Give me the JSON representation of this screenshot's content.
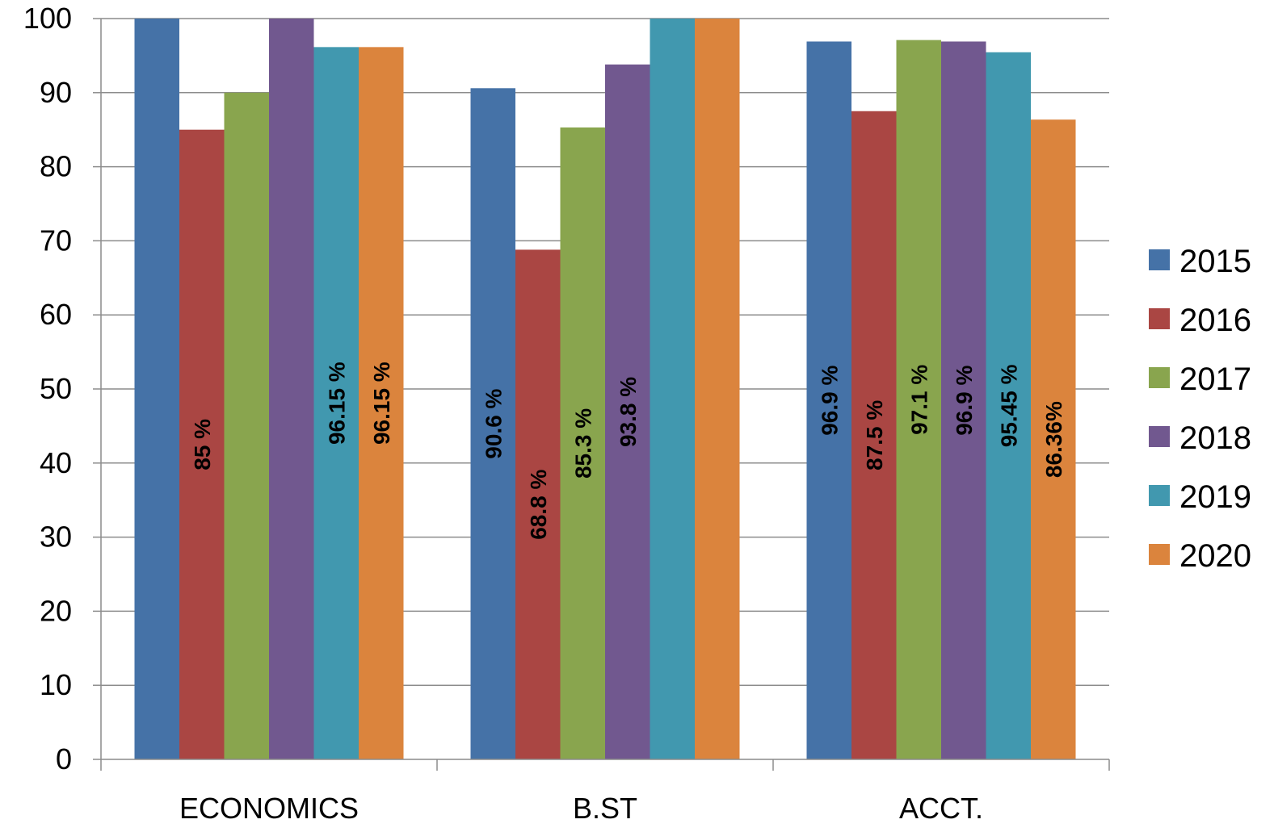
{
  "chart_data": {
    "type": "bar",
    "categories": [
      "ECONOMICS",
      "B.ST",
      "ACCT."
    ],
    "ylim": [
      0,
      100
    ],
    "yticks": [
      0,
      10,
      20,
      30,
      40,
      50,
      60,
      70,
      80,
      90,
      100
    ],
    "grid": true,
    "legend_position": "right",
    "series": [
      {
        "name": "2015",
        "color": "#4572a7",
        "values": [
          100,
          90.6,
          96.9
        ],
        "labels": [
          "",
          "90.6 %",
          "96.9 %"
        ]
      },
      {
        "name": "2016",
        "color": "#aa4643",
        "values": [
          85,
          68.8,
          87.5
        ],
        "labels": [
          "85 %",
          "68.8 %",
          "87.5 %"
        ]
      },
      {
        "name": "2017",
        "color": "#89a54e",
        "values": [
          90,
          85.3,
          97.1
        ],
        "labels": [
          "",
          "85.3 %",
          "97.1 %"
        ]
      },
      {
        "name": "2018",
        "color": "#71588f",
        "values": [
          100,
          93.8,
          96.9
        ],
        "labels": [
          "",
          "93.8 %",
          "96.9 %"
        ]
      },
      {
        "name": "2019",
        "color": "#4198af",
        "values": [
          96.15,
          100,
          95.45
        ],
        "labels": [
          "96.15 %",
          "",
          "95.45 %"
        ]
      },
      {
        "name": "2020",
        "color": "#db843d",
        "values": [
          96.15,
          100,
          86.36
        ],
        "labels": [
          "96.15 %",
          "",
          "86.36%"
        ]
      }
    ]
  }
}
